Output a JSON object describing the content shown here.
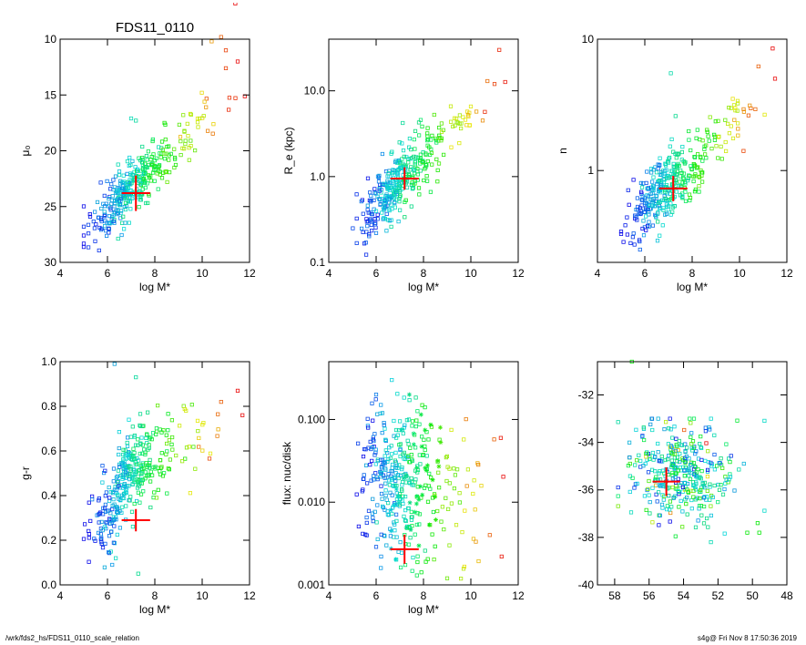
{
  "page_title": "FDS11_0110",
  "footer": {
    "left": "/wrk/fds2_hs/FDS11_0110_scale_relation",
    "right": "s4g@  Fri Nov  8 17:50:36 2019"
  },
  "colors": {
    "marker": "#ff0000",
    "frame": "#000000"
  },
  "chart_data": [
    {
      "type": "scatter",
      "title": "FDS11_0110",
      "xlabel": "log M*",
      "ylabel": "μ₀",
      "xlim": [
        4,
        12
      ],
      "ylim": [
        30,
        10
      ],
      "y_reversed": true,
      "xticks": [
        "4",
        "6",
        "8",
        "10",
        "12"
      ],
      "yticks": [
        "10",
        "15",
        "20",
        "25",
        "30"
      ],
      "cloud": {
        "x_center": 6.8,
        "y_center": 23.5,
        "points_core": 330,
        "spread": "correlated"
      },
      "sample_points": [
        [
          7.0,
          17.1
        ],
        [
          7.2,
          17.3
        ],
        [
          9.2,
          16.8
        ],
        [
          10.1,
          15.6
        ],
        [
          10.8,
          9.8
        ],
        [
          11.0,
          11.0
        ],
        [
          11.5,
          12.0
        ],
        [
          11.4,
          6.8
        ],
        [
          10.4,
          10.2
        ],
        [
          11.0,
          12.6
        ]
      ],
      "highlight": {
        "x": 7.2,
        "y": 23.8,
        "xerr": 0.6,
        "yerr": 1.6
      }
    },
    {
      "type": "scatter",
      "xlabel": "log M*",
      "ylabel": "R_e (kpc)",
      "xlim": [
        4,
        12
      ],
      "ylim": [
        0.1,
        40
      ],
      "y_scale": "log",
      "xticks": [
        "4",
        "6",
        "8",
        "10",
        "12"
      ],
      "yticks": [
        "0.1",
        "1.0",
        "10.0"
      ],
      "sample_points": [
        [
          11.2,
          30.0
        ],
        [
          11.0,
          12.0
        ],
        [
          10.7,
          13.0
        ],
        [
          9.9,
          5.0
        ],
        [
          10.5,
          4.5
        ],
        [
          6.0,
          0.22
        ],
        [
          5.8,
          0.3
        ],
        [
          8.1,
          1.8
        ]
      ],
      "highlight": {
        "x": 7.2,
        "y": 0.95,
        "xerr": 0.6,
        "yerr_factor": 1.35
      }
    },
    {
      "type": "scatter",
      "xlabel": "log M*",
      "ylabel": "n",
      "xlim": [
        4,
        12
      ],
      "ylim": [
        0.2,
        10
      ],
      "y_scale": "log",
      "xticks": [
        "4",
        "6",
        "8",
        "10",
        "12"
      ],
      "yticks": [
        "1",
        "10"
      ],
      "sample_points": [
        [
          7.1,
          5.5
        ],
        [
          11.4,
          8.5
        ],
        [
          11.5,
          5.0
        ],
        [
          10.8,
          6.2
        ],
        [
          5.4,
          0.28
        ],
        [
          5.8,
          0.25
        ],
        [
          7.3,
          2.6
        ]
      ],
      "highlight": {
        "x": 7.2,
        "y": 0.73,
        "xerr": 0.6,
        "yerr_factor": 1.25
      }
    },
    {
      "type": "scatter",
      "xlabel": "log M*",
      "ylabel": "g-r",
      "xlim": [
        4,
        12
      ],
      "ylim": [
        0.0,
        1.0
      ],
      "xticks": [
        "4",
        "6",
        "8",
        "10",
        "12"
      ],
      "yticks": [
        "0.0",
        "0.2",
        "0.4",
        "0.6",
        "0.8",
        "1.0"
      ],
      "sample_points": [
        [
          6.3,
          0.99
        ],
        [
          7.2,
          0.93
        ],
        [
          10.8,
          0.82
        ],
        [
          11.5,
          0.87
        ],
        [
          11.7,
          0.76
        ],
        [
          7.3,
          0.05
        ],
        [
          6.2,
          0.09
        ]
      ],
      "highlight": {
        "x": 7.2,
        "y": 0.29,
        "xerr": 0.6,
        "yerr": 0.05
      }
    },
    {
      "type": "scatter",
      "xlabel": "log M*",
      "ylabel": "flux: nuc/disk",
      "xlim": [
        4,
        12
      ],
      "ylim": [
        0.001,
        0.5
      ],
      "y_scale": "log",
      "xticks": [
        "4",
        "6",
        "8",
        "10",
        "12"
      ],
      "yticks": [
        "0.001",
        "0.010",
        "0.100"
      ],
      "sample_points": [
        [
          6.0,
          0.2
        ],
        [
          6.2,
          0.15
        ],
        [
          11.3,
          0.0022
        ],
        [
          10.8,
          0.004
        ],
        [
          6.2,
          0.0016
        ],
        [
          8.6,
          0.031
        ],
        [
          9.0,
          0.0012
        ]
      ],
      "highlight": {
        "x": 7.2,
        "y": 0.0027,
        "xerr": 0.6,
        "yerr_factor": 1.5
      }
    },
    {
      "type": "scatter",
      "xlabel": "",
      "ylabel": "",
      "xlim": [
        59,
        48
      ],
      "ylim": [
        -40,
        -30.6
      ],
      "x_reversed": true,
      "xticks": [
        "58",
        "56",
        "54",
        "52",
        "50",
        "48"
      ],
      "yticks": [
        "-40",
        "-38",
        "-36",
        "-34",
        "-32"
      ],
      "sample_points": [
        [
          57.0,
          -30.6
        ],
        [
          50.3,
          -37.8
        ],
        [
          49.6,
          -37.8
        ],
        [
          49.7,
          -37.4
        ]
      ],
      "highlight": {
        "x": 55.0,
        "y": -35.65,
        "xerr": 0.8,
        "yerr": 0.6
      }
    }
  ]
}
